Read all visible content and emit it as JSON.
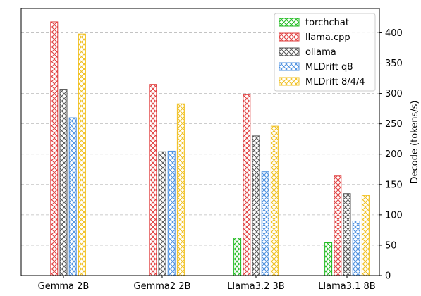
{
  "chart_data": {
    "type": "bar",
    "title": "",
    "xlabel": "",
    "ylabel": "Decode (tokens/s)",
    "ylim": [
      0,
      440
    ],
    "yticks": [
      0,
      50,
      100,
      150,
      200,
      250,
      300,
      350,
      400
    ],
    "y_axis_side": "right",
    "grid": "horizontal-dashed",
    "legend_position": "top-right",
    "categories": [
      "Gemma 2B",
      "Gemma2 2B",
      "Llama3.2 3B",
      "Llama3.1 8B"
    ],
    "series": [
      {
        "name": "torchchat",
        "color": "#22bb22",
        "values": [
          null,
          null,
          62,
          54
        ]
      },
      {
        "name": "llama.cpp",
        "color": "#e04040",
        "values": [
          418,
          315,
          298,
          164
        ]
      },
      {
        "name": "ollama",
        "color": "#555555",
        "values": [
          307,
          204,
          230,
          135
        ]
      },
      {
        "name": "MLDrift q8",
        "color": "#4a8fe0",
        "values": [
          260,
          205,
          171,
          90
        ]
      },
      {
        "name": "MLDrift 8/4/4",
        "color": "#f0c020",
        "values": [
          398,
          283,
          246,
          132
        ]
      }
    ]
  }
}
